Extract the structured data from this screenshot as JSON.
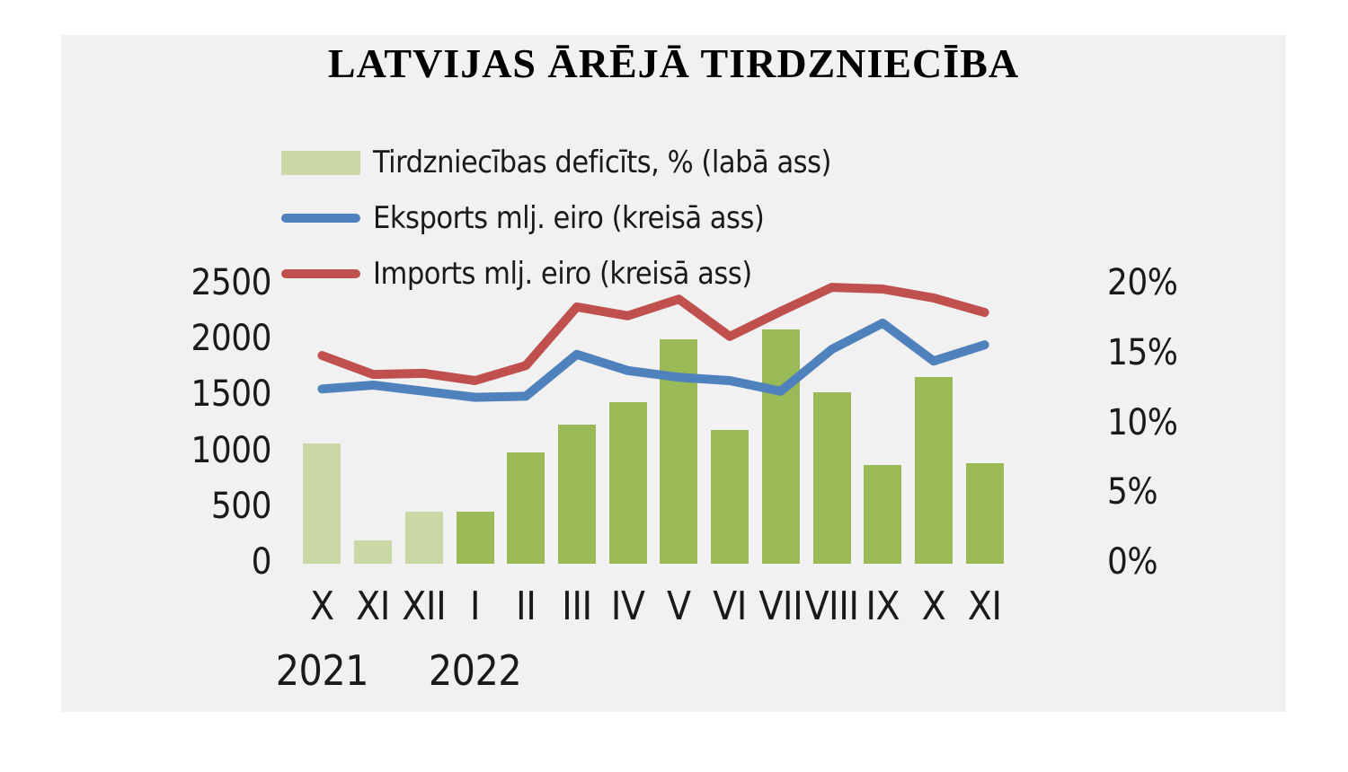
{
  "chart_data": {
    "type": "combo",
    "title": "LATVIJAS ĀRĒJĀ TIRDZNIECĪBA",
    "categories": [
      "X",
      "XI",
      "XII",
      "I",
      "II",
      "III",
      "IV",
      "V",
      "VI",
      "VII",
      "VIII",
      "IX",
      "X",
      "XI"
    ],
    "year_labels": [
      {
        "text": "2021",
        "at_index": 0
      },
      {
        "text": "2022",
        "at_index": 3
      }
    ],
    "series": [
      {
        "name": "Tirdzniecības deficīts, % (labā ass)",
        "type": "bar",
        "axis": "right",
        "values": [
          8.6,
          1.7,
          3.7,
          3.7,
          8.0,
          10.0,
          11.6,
          16.1,
          9.6,
          16.8,
          12.3,
          7.1,
          13.4,
          7.2
        ],
        "point_colors": [
          "#c9d8a5",
          "#c9d8a5",
          "#c9d8a5",
          "#9aba58",
          "#9aba58",
          "#9aba58",
          "#9aba58",
          "#9aba58",
          "#9aba58",
          "#9aba58",
          "#9aba58",
          "#9aba58",
          "#9aba58",
          "#9aba58"
        ],
        "legend_swatch_color": "#c9d8a5"
      },
      {
        "name": "Eksports mlj. eiro (kreisā ass)",
        "type": "line",
        "axis": "left",
        "color": "#4f81bd",
        "values": [
          1565,
          1600,
          1545,
          1490,
          1500,
          1875,
          1730,
          1670,
          1640,
          1545,
          1920,
          2155,
          1815,
          1960
        ]
      },
      {
        "name": "Imports mlj. eiro (kreisā ass)",
        "type": "line",
        "axis": "left",
        "color": "#c0504d",
        "values": [
          1865,
          1695,
          1705,
          1640,
          1775,
          2300,
          2220,
          2370,
          2035,
          2260,
          2475,
          2460,
          2380,
          2250
        ]
      }
    ],
    "left_axis": {
      "labels": [
        "0",
        "500",
        "1000",
        "1500",
        "2000",
        "2500"
      ],
      "values": [
        0,
        500,
        1000,
        1500,
        2000,
        2500
      ],
      "min": 0,
      "max": 2500
    },
    "right_axis": {
      "labels": [
        "0%",
        "5%",
        "10%",
        "15%",
        "20%"
      ],
      "values": [
        0,
        5,
        10,
        15,
        20
      ],
      "min": 0,
      "max": 20
    },
    "grid": "off",
    "legend_position": "top-left"
  },
  "colors": {
    "panel_background": "#f1f1f2",
    "page_background": "#ffffff",
    "bar_2021": "#c9d8a5",
    "bar_2022": "#9aba58",
    "exports_line": "#4f81bd",
    "imports_line": "#c0504d",
    "text": "#1a1a1a"
  }
}
